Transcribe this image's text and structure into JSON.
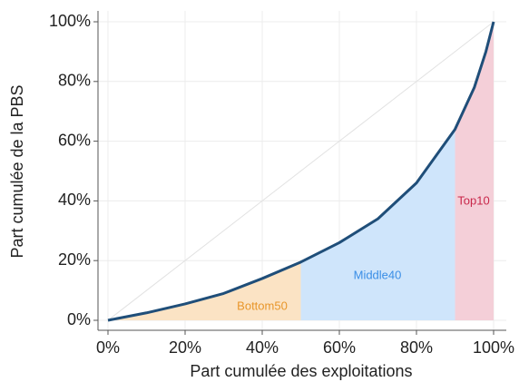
{
  "chart_data": {
    "type": "lorenz",
    "xlabel": "Part cumulée des exploitations",
    "ylabel": "Part cumulée de la PBS",
    "x": [
      0,
      10,
      20,
      30,
      40,
      50,
      60,
      70,
      80,
      90,
      95,
      98,
      100
    ],
    "values": [
      0,
      2.5,
      5.5,
      9,
      14,
      19.5,
      26,
      34,
      46,
      64,
      78,
      90,
      100
    ],
    "color": "#1f4e79",
    "xlim": [
      0,
      100
    ],
    "ylim": [
      0,
      100
    ],
    "xticks": [
      {
        "value": 0,
        "label": "0%"
      },
      {
        "value": 20,
        "label": "20%"
      },
      {
        "value": 40,
        "label": "40%"
      },
      {
        "value": 60,
        "label": "60%"
      },
      {
        "value": 80,
        "label": "80%"
      },
      {
        "value": 100,
        "label": "100%"
      }
    ],
    "yticks": [
      {
        "value": 0,
        "label": "0%"
      },
      {
        "value": 20,
        "label": "20%"
      },
      {
        "value": 40,
        "label": "40%"
      },
      {
        "value": 60,
        "label": "60%"
      },
      {
        "value": 80,
        "label": "80%"
      },
      {
        "value": 100,
        "label": "100%"
      }
    ],
    "grid": true,
    "areas": [
      {
        "name": "Bottom50",
        "from": 0,
        "to": 50,
        "color": "#fbe3c4",
        "label_color": "#e8962a"
      },
      {
        "name": "Middle40",
        "from": 50,
        "to": 90,
        "color": "#cfe5fb",
        "label_color": "#3a8ee6"
      },
      {
        "name": "Top10",
        "from": 90,
        "to": 100,
        "color": "#f4cfd8",
        "label_color": "#c8274a"
      }
    ]
  }
}
